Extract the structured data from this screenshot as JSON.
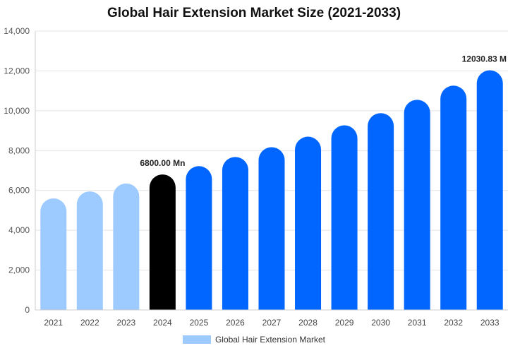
{
  "chart_data": {
    "type": "bar",
    "title": "Global Hair Extension Market Size (2021-2033)",
    "categories": [
      "2021",
      "2022",
      "2023",
      "2024",
      "2025",
      "2026",
      "2027",
      "2028",
      "2029",
      "2030",
      "2031",
      "2032",
      "2033"
    ],
    "series": [
      {
        "name": "Global Hair Extension Market",
        "values": [
          5600,
          5950,
          6350,
          6800,
          7220,
          7680,
          8170,
          8700,
          9270,
          9880,
          10550,
          11260,
          12030.83
        ]
      }
    ],
    "ylim": [
      0,
      14000
    ],
    "yticks": [
      "0",
      "2,000",
      "4,000",
      "6,000",
      "8,000",
      "10,000",
      "12,000",
      "14,000"
    ],
    "ytick_values": [
      0,
      2000,
      4000,
      6000,
      8000,
      10000,
      12000,
      14000
    ],
    "grid": true,
    "legend_position": "bottom",
    "colors": {
      "historical": "#9ecbff",
      "base_year": "#000000",
      "forecast": "#0066ff",
      "legend_swatch": "#9ecbff",
      "grid": "#e4e4e4"
    },
    "bar_color_groups": [
      "historical",
      "historical",
      "historical",
      "base_year",
      "forecast",
      "forecast",
      "forecast",
      "forecast",
      "forecast",
      "forecast",
      "forecast",
      "forecast",
      "forecast"
    ],
    "annotations": [
      {
        "category": "2024",
        "text": "6800.00 Mn"
      },
      {
        "category": "2033",
        "text": "12030.83 M"
      }
    ]
  }
}
